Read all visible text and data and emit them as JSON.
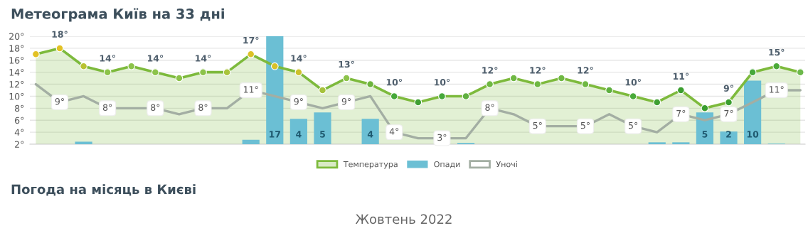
{
  "chart_data": {
    "type": "line",
    "title": "Метеограма Київ на 33 дні",
    "categories": [
      null,
      null,
      null,
      null,
      null,
      null,
      null,
      null,
      null,
      null,
      null,
      null,
      null,
      null,
      null,
      null,
      null,
      null,
      null,
      null,
      null,
      null,
      null,
      null,
      null,
      null,
      null,
      null,
      null,
      null,
      null,
      null,
      null
    ],
    "ylim": [
      2,
      20
    ],
    "yticks": [
      {
        "value": 2,
        "label": "2°"
      },
      {
        "value": 4,
        "label": "4°"
      },
      {
        "value": 6,
        "label": "6°"
      },
      {
        "value": 8,
        "label": "8°"
      },
      {
        "value": 10,
        "label": "10°"
      },
      {
        "value": 12,
        "label": "12°"
      },
      {
        "value": 14,
        "label": "14°"
      },
      {
        "value": 16,
        "label": "16°"
      },
      {
        "value": 18,
        "label": "18°"
      },
      {
        "value": 20,
        "label": "20°"
      }
    ],
    "y2lim": [
      0,
      17
    ],
    "tick_labels": "y",
    "grid": "y",
    "legend": "bottom",
    "annotations": [
      "Погода на місяць в Києві",
      "Жовтень 2022"
    ],
    "series": [
      {
        "name": "Температура",
        "type": "area",
        "marker": "circle",
        "color": "#7dba3c",
        "colors": [
          "#e2c124",
          "#e2c124",
          "#b9c232",
          "#8cc34a",
          "#8cc34a",
          "#8cc34a",
          "#8cc34a",
          "#8cc34a",
          "#a9c43c",
          "#dcc226",
          "#d8c128",
          "#ccc02c",
          "#a6c23c",
          "#8cc34a",
          "#6db43e",
          "#46a83a",
          "#3f9f33",
          "#46a83a",
          "#5fb040",
          "#6fb843",
          "#6fb843",
          "#6fb843",
          "#6fb843",
          "#6fb843",
          "#5fb040",
          "#4aaa3a",
          "#3f9f33",
          "#3b9e2f",
          "#3b9e2f",
          "#3b9e2f",
          "#46a83a",
          "#4caa3a",
          "#6cb84a"
        ],
        "values": [
          17,
          18,
          15,
          14,
          15,
          14,
          13,
          14,
          14,
          17,
          15,
          14,
          11,
          13,
          12,
          10,
          9,
          10,
          10,
          12,
          13,
          12,
          13,
          12,
          11,
          10,
          9,
          11,
          8,
          9,
          14,
          15,
          14
        ],
        "value_labels": [
          null,
          "18°",
          null,
          "14°",
          null,
          "14°",
          null,
          "14°",
          null,
          "17°",
          null,
          "14°",
          null,
          "13°",
          null,
          "10°",
          null,
          "10°",
          null,
          "12°",
          null,
          "12°",
          null,
          "12°",
          null,
          "10°",
          null,
          "11°",
          null,
          "9°",
          null,
          "15°",
          null
        ]
      },
      {
        "name": "Опади",
        "type": "bar",
        "axis": "y2",
        "color": "#6bbfd4",
        "values": [
          null,
          null,
          0.4,
          null,
          null,
          null,
          null,
          null,
          null,
          0.7,
          17,
          4,
          5,
          null,
          4,
          null,
          null,
          null,
          0.2,
          null,
          null,
          null,
          null,
          null,
          null,
          null,
          0.3,
          0.3,
          5,
          2,
          10,
          0.1,
          null
        ],
        "value_labels": [
          null,
          null,
          null,
          null,
          null,
          null,
          null,
          null,
          null,
          null,
          "17",
          "4",
          "5",
          null,
          "4",
          null,
          null,
          null,
          null,
          null,
          null,
          null,
          null,
          null,
          null,
          null,
          null,
          null,
          "5",
          "2",
          "10",
          null,
          null
        ]
      },
      {
        "name": "Уночі",
        "marker": "none",
        "color": "#a3aea3",
        "values": [
          12,
          9,
          10,
          8,
          8,
          8,
          7,
          8,
          8,
          11,
          10,
          9,
          8,
          9,
          10,
          4,
          3,
          3,
          3,
          8,
          7,
          5,
          5,
          5,
          7,
          5,
          4,
          7,
          6,
          7,
          9,
          11,
          11
        ],
        "value_labels": [
          null,
          "9°",
          null,
          "8°",
          null,
          "8°",
          null,
          "8°",
          null,
          "11°",
          null,
          "9°",
          null,
          "9°",
          null,
          "4°",
          null,
          "3°",
          null,
          "8°",
          null,
          "5°",
          null,
          "5°",
          null,
          "5°",
          null,
          "7°",
          null,
          "7°",
          null,
          "11°",
          null
        ]
      }
    ]
  }
}
